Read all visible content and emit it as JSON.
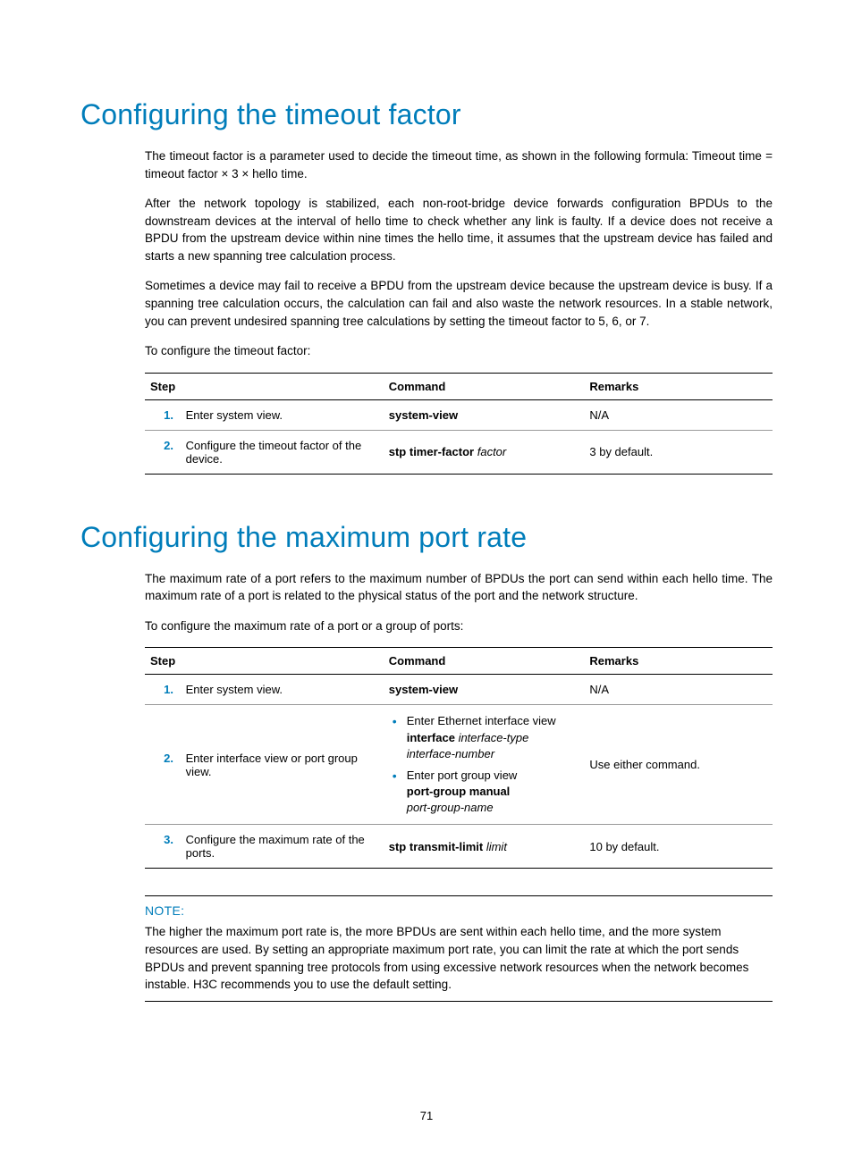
{
  "page": {
    "number": "71"
  },
  "section1": {
    "heading": "Configuring the timeout factor",
    "para1": "The timeout factor is a parameter used to decide the timeout time, as shown in the following formula: Timeout time = timeout factor × 3 × hello time.",
    "para2": "After the network topology is stabilized, each non-root-bridge device forwards configuration BPDUs to the downstream devices at the interval of hello time to check whether any link is faulty. If a device does not receive a BPDU from the upstream device within nine times the hello time, it assumes that the upstream device has failed and starts a new spanning tree calculation process.",
    "para3": "Sometimes a device may fail to receive a BPDU from the upstream device because the upstream device is busy. If a spanning tree calculation occurs, the calculation can fail and also waste the network resources. In a stable network, you can prevent undesired spanning tree calculations by setting the timeout factor to 5, 6, or 7.",
    "para4": "To configure the timeout factor:",
    "table": {
      "headers": {
        "step": "Step",
        "command": "Command",
        "remarks": "Remarks"
      },
      "rows": [
        {
          "num": "1.",
          "step": "Enter system view.",
          "cmd_bold": "system-view",
          "remarks": "N/A"
        },
        {
          "num": "2.",
          "step": "Configure the timeout factor of the device.",
          "cmd_bold": "stp timer-factor",
          "cmd_italic": " factor",
          "remarks": "3 by default."
        }
      ]
    }
  },
  "section2": {
    "heading": "Configuring the maximum port rate",
    "para1": "The maximum rate of a port refers to the maximum number of BPDUs the port can send within each hello time. The maximum rate of a port is related to the physical status of the port and the network structure.",
    "para2": "To configure the maximum rate of a port or a group of ports:",
    "table": {
      "headers": {
        "step": "Step",
        "command": "Command",
        "remarks": "Remarks"
      },
      "rows": [
        {
          "num": "1.",
          "step": "Enter system view.",
          "cmd_bold": "system-view",
          "remarks": "N/A"
        },
        {
          "num": "2.",
          "step": "Enter interface view or port group view.",
          "list_item1_text": "Enter Ethernet interface view",
          "list_item1_bold": "interface",
          "list_item1_italic": " interface-type interface-number",
          "list_item2_text": "Enter port group view",
          "list_item2_bold": "port-group manual",
          "list_item2_italic": "port-group-name",
          "remarks": "Use either command."
        },
        {
          "num": "3.",
          "step": "Configure the maximum rate of the ports.",
          "cmd_bold": "stp transmit-limit",
          "cmd_italic": " limit",
          "remarks": "10 by default."
        }
      ]
    },
    "note": {
      "label": "NOTE:",
      "text": "The higher the maximum port rate is, the more BPDUs are sent within each hello time, and the more system resources are used. By setting an appropriate maximum port rate, you can limit the rate at which the port sends BPDUs and prevent spanning tree protocols from using excessive network resources when the network becomes instable. H3C recommends you to use the default setting."
    }
  },
  "colors": {
    "accent": "#007dba",
    "text": "#000000",
    "background": "#ffffff"
  },
  "typography": {
    "heading_fontsize": 32,
    "heading_weight": 300,
    "body_fontsize": 13.5,
    "table_fontsize": 13
  }
}
